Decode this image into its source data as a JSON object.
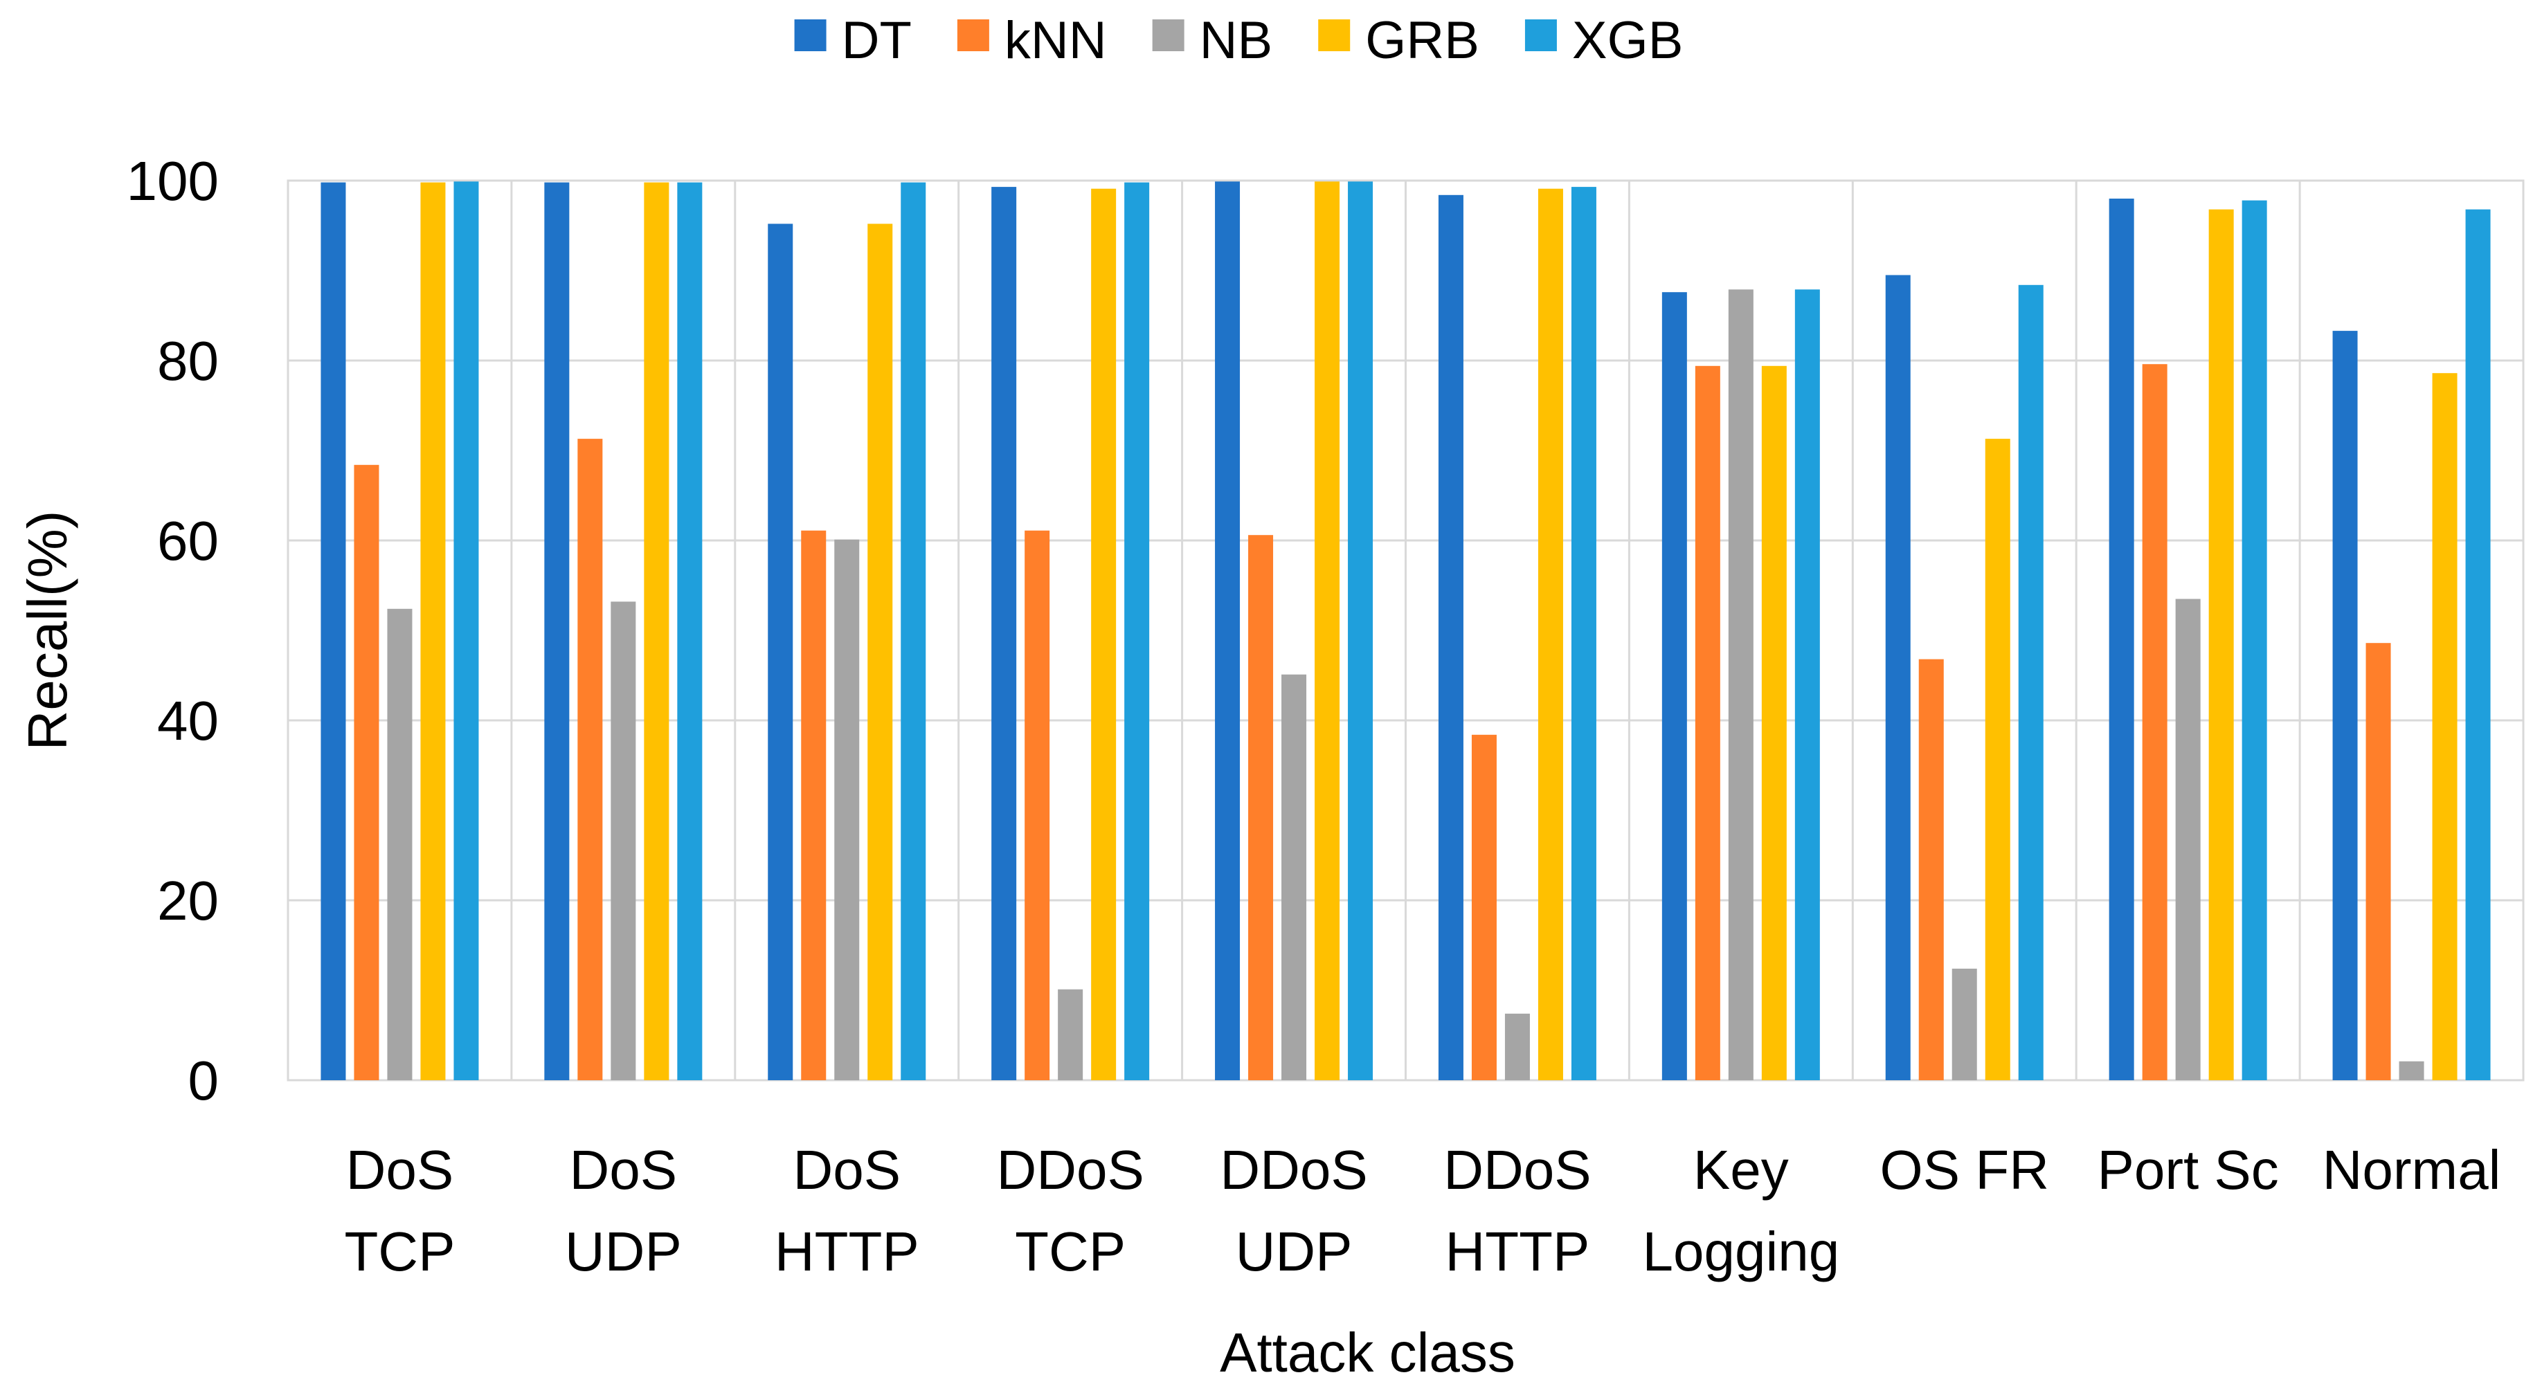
{
  "chart_data": {
    "type": "bar",
    "title": "",
    "xlabel": "Attack class",
    "ylabel": "Recall(%)",
    "ylim": [
      0,
      100
    ],
    "yticks": [
      0,
      20,
      40,
      60,
      80,
      100
    ],
    "grid": true,
    "legend_position": "top-center",
    "categories": [
      [
        "DoS",
        "TCP"
      ],
      [
        "DoS",
        "UDP"
      ],
      [
        "DoS",
        "HTTP"
      ],
      [
        "DDoS",
        "TCP"
      ],
      [
        "DDoS",
        "UDP"
      ],
      [
        "DDoS",
        "HTTP"
      ],
      [
        "Key",
        "Logging"
      ],
      [
        "OS FR"
      ],
      [
        "Port Sc"
      ],
      [
        "Normal"
      ]
    ],
    "series": [
      {
        "name": "DT",
        "color": "#1f73c8",
        "values": [
          99.8,
          99.8,
          95.2,
          99.3,
          99.9,
          98.4,
          87.6,
          89.5,
          98.0,
          83.3
        ]
      },
      {
        "name": "kNN",
        "color": "#ff7f2a",
        "values": [
          68.4,
          71.3,
          61.1,
          61.1,
          60.6,
          38.4,
          79.4,
          46.8,
          79.6,
          48.6
        ]
      },
      {
        "name": "NB",
        "color": "#a5a5a5",
        "values": [
          52.4,
          53.2,
          60.1,
          10.1,
          45.1,
          7.4,
          87.9,
          12.4,
          53.5,
          2.1
        ]
      },
      {
        "name": "GRB",
        "color": "#ffc000",
        "values": [
          99.8,
          99.8,
          95.2,
          99.1,
          99.9,
          99.1,
          79.4,
          71.3,
          96.8,
          78.6
        ]
      },
      {
        "name": "XGB",
        "color": "#1f9fdc",
        "values": [
          99.9,
          99.8,
          99.8,
          99.8,
          99.9,
          99.3,
          87.9,
          88.4,
          97.8,
          96.8
        ]
      }
    ]
  }
}
